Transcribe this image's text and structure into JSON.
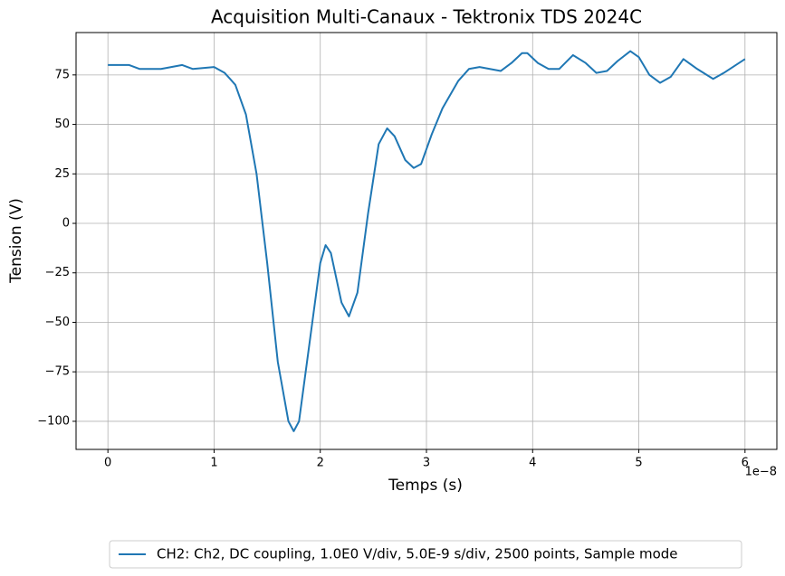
{
  "chart_data": {
    "type": "line",
    "title": "Acquisition Multi-Canaux - Tektronix TDS 2024C",
    "x_label": "Temps (s)",
    "y_label": "Tension (V)",
    "x_offset_label": "1e−8",
    "x": [
      0,
      2e-09,
      3e-09,
      5e-09,
      7e-09,
      8e-09,
      1e-08,
      1.1e-08,
      1.2e-08,
      1.3e-08,
      1.4e-08,
      1.5e-08,
      1.6e-08,
      1.7e-08,
      1.75e-08,
      1.8e-08,
      1.9e-08,
      2e-08,
      2.05e-08,
      2.1e-08,
      2.2e-08,
      2.27e-08,
      2.35e-08,
      2.45e-08,
      2.55e-08,
      2.63e-08,
      2.7e-08,
      2.8e-08,
      2.88e-08,
      2.95e-08,
      3.05e-08,
      3.15e-08,
      3.3e-08,
      3.4e-08,
      3.5e-08,
      3.7e-08,
      3.8e-08,
      3.9e-08,
      3.95e-08,
      4.05e-08,
      4.15e-08,
      4.25e-08,
      4.38e-08,
      4.5e-08,
      4.6e-08,
      4.7e-08,
      4.8e-08,
      4.92e-08,
      5e-08,
      5.1e-08,
      5.2e-08,
      5.3e-08,
      5.42e-08,
      5.55e-08,
      5.7e-08,
      5.8e-08,
      6e-08
    ],
    "series": [
      {
        "name": "CH2: Ch2, DC coupling, 1.0E0 V/div, 5.0E-9 s/div, 2500 points, Sample mode",
        "color": "#1f77b4",
        "values": [
          80,
          80,
          78,
          78,
          80,
          78,
          79,
          76,
          70,
          55,
          25,
          -20,
          -70,
          -100,
          -105,
          -100,
          -60,
          -20,
          -11,
          -15,
          -40,
          -47,
          -35,
          5,
          40,
          48,
          44,
          32,
          28,
          30,
          45,
          58,
          72,
          78,
          79,
          77,
          81,
          86,
          86,
          81,
          78,
          78,
          85,
          81,
          76,
          77,
          82,
          87,
          84,
          75,
          71,
          74,
          83,
          78,
          73,
          76,
          83
        ]
      }
    ],
    "xlim": [
      -3e-09,
      6.3e-08
    ],
    "ylim": [
      -114.2,
      96.4
    ],
    "xticks": [
      {
        "value": 0,
        "label": "0"
      },
      {
        "value": 1e-08,
        "label": "1"
      },
      {
        "value": 2e-08,
        "label": "2"
      },
      {
        "value": 3e-08,
        "label": "3"
      },
      {
        "value": 4e-08,
        "label": "4"
      },
      {
        "value": 5e-08,
        "label": "5"
      },
      {
        "value": 6e-08,
        "label": "6"
      }
    ],
    "yticks": [
      {
        "value": -100,
        "label": "−100"
      },
      {
        "value": -75,
        "label": "−75"
      },
      {
        "value": -50,
        "label": "−50"
      },
      {
        "value": -25,
        "label": "−25"
      },
      0,
      25,
      50,
      75
    ],
    "grid": true,
    "legend": "bottom"
  }
}
